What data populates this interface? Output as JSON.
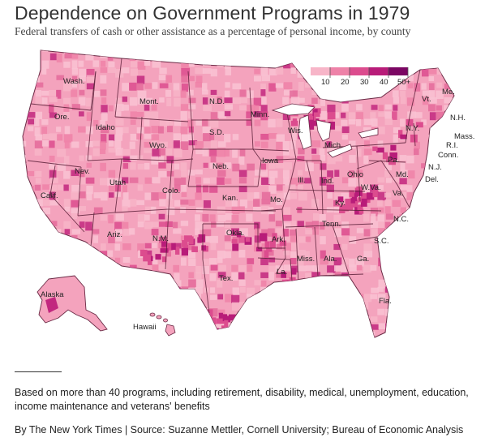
{
  "title": "Dependence on Government Programs in 1979",
  "subtitle": "Federal transfers of cash or other assistance as a percentage of personal income, by county",
  "legend": {
    "labels": [
      "10",
      "20",
      "30",
      "40",
      "50+"
    ],
    "colors": [
      "#f7b5c8",
      "#ee82a8",
      "#dc4c8e",
      "#b81c79",
      "#7b0663"
    ]
  },
  "map": {
    "base_color": "#f4a3bd",
    "state_labels": [
      "Wash.",
      "Ore.",
      "Calif.",
      "Nev.",
      "Idaho",
      "Mont.",
      "Wyo.",
      "Utah",
      "Ariz.",
      "Colo.",
      "N.M.",
      "N.D.",
      "S.D.",
      "Neb.",
      "Kan.",
      "Okla.",
      "Tex.",
      "Minn.",
      "Iowa",
      "Mo.",
      "Ark.",
      "La.",
      "Wis.",
      "Ill.",
      "Mich.",
      "Ind.",
      "Ohio",
      "Ky.",
      "Tenn.",
      "Miss.",
      "Ala.",
      "Ga.",
      "Fla.",
      "S.C.",
      "N.C.",
      "Va.",
      "W.Va.",
      "Pa.",
      "Md.",
      "Del.",
      "N.J.",
      "N.Y.",
      "Conn.",
      "R.I.",
      "Mass.",
      "Vt.",
      "N.H.",
      "Me.",
      "Alaska",
      "Hawaii"
    ]
  },
  "note": "Based on more than 40 programs, including retirement, disability, medical, unemployment, education, income maintenance and veterans' benefits",
  "credit": "By The New York Times | Source: Suzanne Mettler, Cornell University; Bureau of Economic Analysis"
}
